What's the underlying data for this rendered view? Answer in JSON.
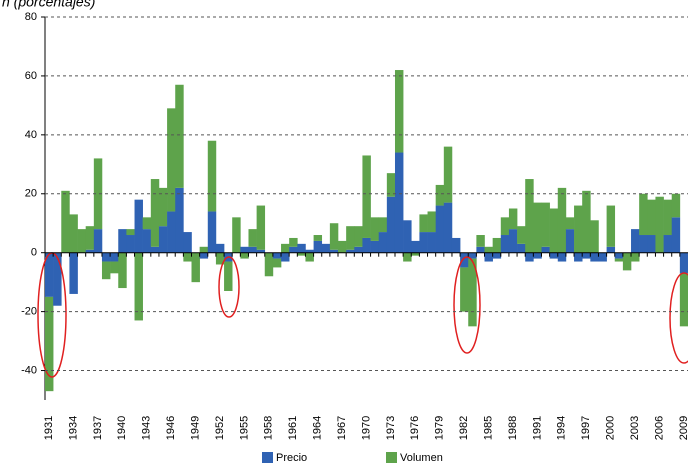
{
  "chart_data": {
    "type": "stacked_bar",
    "title": "n (porcentajes)",
    "categories": [
      "1931",
      null,
      null,
      "1934",
      null,
      null,
      "1937",
      null,
      null,
      "1940",
      null,
      null,
      "1943",
      null,
      null,
      "1946",
      null,
      null,
      "1949",
      null,
      null,
      "1952",
      null,
      null,
      "1955",
      null,
      null,
      "1958",
      null,
      null,
      "1961",
      null,
      null,
      "1964",
      null,
      null,
      "1967",
      null,
      null,
      "1970",
      null,
      null,
      "1973",
      null,
      null,
      "1976",
      null,
      null,
      "1979",
      null,
      null,
      "1982",
      null,
      null,
      "1985",
      null,
      null,
      "1988",
      null,
      null,
      "1991",
      null,
      null,
      "1994",
      null,
      null,
      "1997",
      null,
      null,
      "2000",
      null,
      null,
      "2003",
      null,
      null,
      "2006",
      null,
      null,
      "2009"
    ],
    "series": [
      {
        "name": "Precio",
        "color": "#2f62b3",
        "values": [
          -15,
          -18,
          0,
          -14,
          0,
          1,
          8,
          -3,
          -3,
          8,
          6,
          18,
          8,
          2,
          9,
          14,
          22,
          7,
          0,
          -2,
          14,
          3,
          -3,
          0,
          2,
          2,
          1,
          0,
          -2,
          -3,
          2,
          3,
          1,
          4,
          3,
          1,
          0,
          1,
          2,
          5,
          4,
          7,
          19,
          34,
          11,
          4,
          7,
          7,
          16,
          17,
          5,
          -5,
          -2,
          2,
          -3,
          -2,
          6,
          8,
          3,
          -3,
          -2,
          2,
          -2,
          -3,
          8,
          -3,
          -2,
          -3,
          -3,
          2,
          -2,
          0,
          8,
          6,
          6,
          0,
          6,
          12,
          -7
        ]
      },
      {
        "name": "Volumen",
        "color": "#5ea34b",
        "values": [
          -32,
          0,
          21,
          13,
          8,
          8,
          24,
          -6,
          -4,
          -12,
          2,
          -23,
          4,
          23,
          13,
          35,
          35,
          -3,
          -10,
          2,
          24,
          -4,
          -10,
          12,
          -2,
          6,
          15,
          -8,
          -3,
          3,
          3,
          -1,
          -3,
          2,
          0,
          9,
          4,
          8,
          7,
          28,
          8,
          5,
          8,
          28,
          -3,
          -1,
          6,
          7,
          7,
          19,
          0,
          -15,
          -23,
          4,
          2,
          5,
          6,
          7,
          6,
          25,
          17,
          15,
          15,
          22,
          4,
          16,
          21,
          11,
          0,
          14,
          -1,
          -6,
          -3,
          14,
          12,
          19,
          12,
          8,
          -18
        ]
      }
    ],
    "ylim": [
      -50,
      80
    ],
    "yticks": [
      -40,
      -20,
      0,
      20,
      40,
      60,
      80
    ],
    "grid": true
  }
}
